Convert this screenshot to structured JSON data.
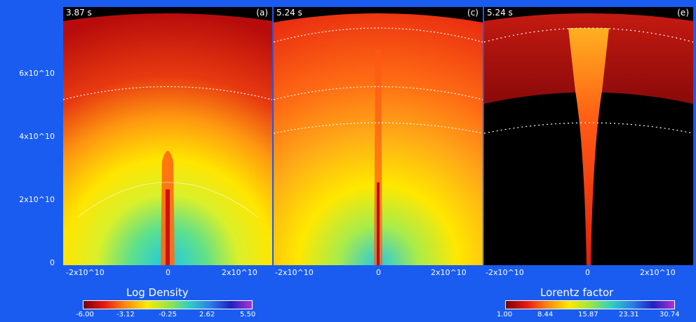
{
  "panels": [
    {
      "time": "3.87 s",
      "label": "(a)"
    },
    {
      "time": "5.24 s",
      "label": "(c)"
    },
    {
      "time": "5.24 s",
      "label": "(e)"
    }
  ],
  "y_ticks": [
    "0",
    "2x10^10",
    "4x10^10",
    "6x10^10"
  ],
  "x_ticks": [
    "-2x10^10",
    "0",
    "2x10^10"
  ],
  "colorbars": {
    "density": {
      "title": "Log Density",
      "ticks": [
        "-6.00",
        "-3.12",
        "-0.25",
        "2.62",
        "5.50"
      ]
    },
    "lorentz": {
      "title": "Lorentz factor",
      "ticks": [
        "1.00",
        "8.44",
        "15.87",
        "23.31",
        "30.74"
      ]
    }
  }
}
